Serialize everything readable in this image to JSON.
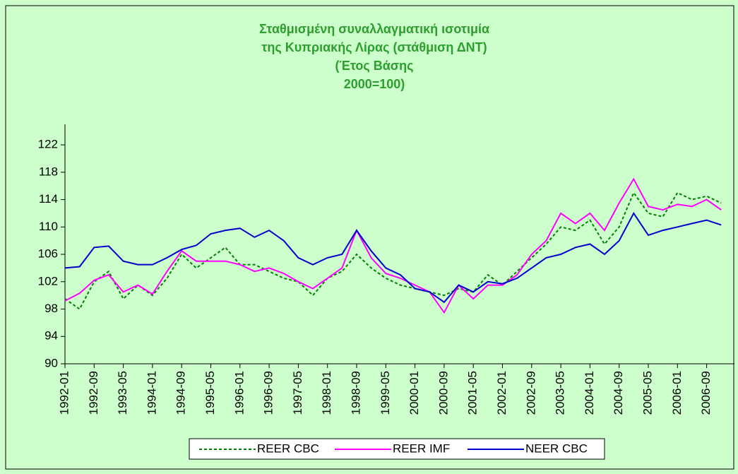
{
  "chart_data": {
    "type": "line",
    "title": [
      "Σταθμισμένη συναλλαγματική ισοτιμία",
      "της Κυπριακής Λίρας (στάθμιση ΔΝΤ)",
      "(Έτος Βάσης",
      "2000=100)"
    ],
    "categories": [
      "1992-01",
      null,
      "1992-09",
      null,
      "1993-05",
      null,
      "1994-01",
      null,
      "1994-09",
      null,
      "1995-05",
      null,
      "1996-01",
      null,
      "1996-09",
      null,
      "1997-05",
      null,
      "1998-01",
      null,
      "1998-09",
      null,
      "1999-05",
      null,
      "2000-01",
      null,
      "2000-09",
      null,
      "2001-05",
      null,
      "2002-01",
      null,
      "2002-09",
      null,
      "2003-05",
      null,
      "2004-01",
      null,
      "2004-09",
      null,
      "2005-05",
      null,
      "2006-01",
      null,
      "2006-09",
      null
    ],
    "series": [
      {
        "name": "REER CBC",
        "color": "#008000",
        "dashed": true,
        "values": [
          99.5,
          98,
          102,
          103.5,
          99.5,
          101.5,
          100,
          102.5,
          106,
          104,
          105.5,
          107,
          104.5,
          104.5,
          103.5,
          102.5,
          102,
          100,
          102.5,
          103.5,
          106,
          104,
          102.5,
          101.5,
          101,
          100.5,
          100,
          101,
          100.5,
          103,
          101.5,
          103.5,
          105.5,
          107.5,
          110,
          109.5,
          111,
          107.5,
          110,
          115,
          112,
          111.5,
          115,
          114,
          114.5,
          113.5
        ]
      },
      {
        "name": "REER IMF",
        "color": "#ff00ff",
        "dashed": false,
        "values": [
          99.2,
          100.3,
          102.2,
          103,
          100.5,
          101.5,
          100.2,
          103.5,
          106.5,
          105,
          105,
          105,
          104.5,
          103.5,
          104,
          103.2,
          102,
          101,
          102.5,
          104,
          109.5,
          105.5,
          103.2,
          102.5,
          101.5,
          100.5,
          97.5,
          101.5,
          99.5,
          101.5,
          101.5,
          103,
          106,
          108,
          112,
          110.5,
          112,
          109.5,
          113.5,
          117,
          113,
          112.5,
          113.3,
          113,
          114,
          112.5
        ]
      },
      {
        "name": "NEER CBC",
        "color": "#0000cc",
        "dashed": false,
        "values": [
          104,
          104.2,
          107,
          107.2,
          105,
          104.5,
          104.5,
          105.5,
          106.7,
          107.3,
          109,
          109.5,
          109.8,
          108.5,
          109.5,
          108,
          105.5,
          104.5,
          105.5,
          106,
          109.5,
          106.5,
          104,
          103,
          101,
          100.5,
          99,
          101.5,
          100.5,
          102,
          101.7,
          102.5,
          104,
          105.5,
          106,
          107,
          107.5,
          106,
          108,
          112,
          108.8,
          109.5,
          110,
          110.5,
          111,
          110.3
        ]
      }
    ],
    "ylim": [
      90,
      125
    ],
    "yticks": [
      90,
      94,
      98,
      102,
      106,
      110,
      114,
      118,
      122
    ],
    "legend": "bottom"
  }
}
